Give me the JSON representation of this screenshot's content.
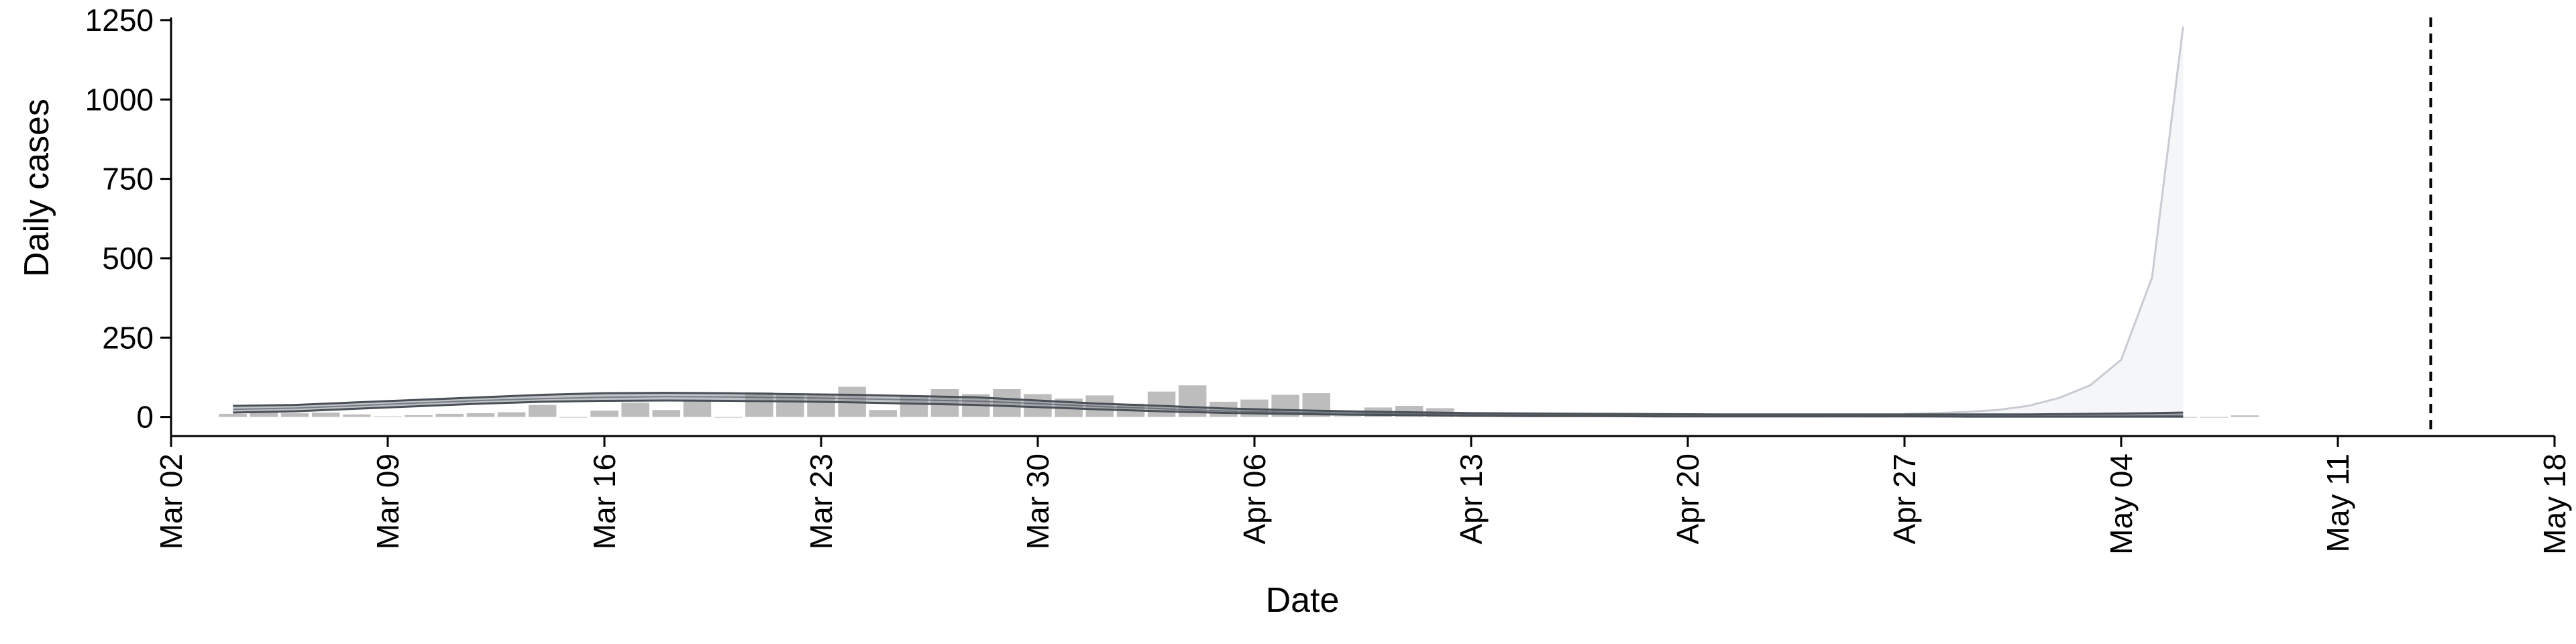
{
  "chart_data": {
    "type": "bar",
    "xlabel": "Date",
    "ylabel": "Daily cases",
    "xlim": [
      "2020-03-02",
      "2020-05-18"
    ],
    "ylim": [
      -60,
      1250
    ],
    "x_ticks": [
      "2020-03-02",
      "2020-03-09",
      "2020-03-16",
      "2020-03-23",
      "2020-03-30",
      "2020-04-06",
      "2020-04-13",
      "2020-04-20",
      "2020-04-27",
      "2020-05-04",
      "2020-05-11",
      "2020-05-18"
    ],
    "x_tick_labels": [
      "Mar 02",
      "Mar 09",
      "Mar 16",
      "Mar 23",
      "Mar 30",
      "Apr 06",
      "Apr 13",
      "Apr 20",
      "Apr 27",
      "May 04",
      "May 11",
      "May 18"
    ],
    "y_ticks": [
      0,
      250,
      500,
      750,
      1000,
      1250
    ],
    "y_tick_labels": [
      "0",
      "250",
      "500",
      "750",
      "1000",
      "1250"
    ],
    "grid": false,
    "legend": "none",
    "colors": {
      "bars": "#bdbdbd",
      "fit_line": "#4a5058",
      "fit_band": "#8a9099",
      "projection": "#c8ccd2",
      "reference_line": "#000000"
    },
    "daily_cases": {
      "dates": [
        "2020-03-04",
        "2020-03-05",
        "2020-03-06",
        "2020-03-07",
        "2020-03-08",
        "2020-03-09",
        "2020-03-10",
        "2020-03-11",
        "2020-03-12",
        "2020-03-13",
        "2020-03-14",
        "2020-03-15",
        "2020-03-16",
        "2020-03-17",
        "2020-03-18",
        "2020-03-19",
        "2020-03-20",
        "2020-03-21",
        "2020-03-22",
        "2020-03-23",
        "2020-03-24",
        "2020-03-25",
        "2020-03-26",
        "2020-03-27",
        "2020-03-28",
        "2020-03-29",
        "2020-03-30",
        "2020-03-31",
        "2020-04-01",
        "2020-04-02",
        "2020-04-03",
        "2020-04-04",
        "2020-04-05",
        "2020-04-06",
        "2020-04-07",
        "2020-04-08",
        "2020-04-09",
        "2020-04-10",
        "2020-04-11",
        "2020-04-12",
        "2020-04-13",
        "2020-04-14",
        "2020-04-15",
        "2020-04-16",
        "2020-04-17",
        "2020-04-18",
        "2020-04-19",
        "2020-04-20",
        "2020-04-21",
        "2020-04-22",
        "2020-04-23",
        "2020-04-24",
        "2020-04-25",
        "2020-04-26",
        "2020-04-27",
        "2020-04-28",
        "2020-04-29",
        "2020-04-30",
        "2020-05-01",
        "2020-05-02",
        "2020-05-03",
        "2020-05-04",
        "2020-05-05",
        "2020-05-06",
        "2020-05-07",
        "2020-05-08"
      ],
      "values": [
        10,
        18,
        12,
        14,
        8,
        2,
        6,
        10,
        12,
        15,
        38,
        0,
        20,
        45,
        22,
        55,
        0,
        78,
        75,
        72,
        95,
        22,
        68,
        88,
        72,
        88,
        72,
        58,
        68,
        42,
        80,
        100,
        48,
        55,
        70,
        75,
        2,
        30,
        35,
        28,
        12,
        10,
        8,
        6,
        4,
        3,
        5,
        2,
        4,
        3,
        2,
        1,
        2,
        1,
        3,
        2,
        2,
        1,
        2,
        1,
        1,
        2,
        1,
        0,
        0,
        5
      ]
    },
    "fit": {
      "dates": [
        "2020-03-04",
        "2020-03-06",
        "2020-03-08",
        "2020-03-10",
        "2020-03-12",
        "2020-03-14",
        "2020-03-16",
        "2020-03-18",
        "2020-03-20",
        "2020-03-22",
        "2020-03-24",
        "2020-03-26",
        "2020-03-28",
        "2020-03-30",
        "2020-04-01",
        "2020-04-03",
        "2020-04-05",
        "2020-04-07",
        "2020-04-09",
        "2020-04-11",
        "2020-04-13",
        "2020-04-15",
        "2020-04-17",
        "2020-04-19",
        "2020-04-21",
        "2020-04-23",
        "2020-04-25",
        "2020-04-27",
        "2020-04-29",
        "2020-05-01",
        "2020-05-03",
        "2020-05-05",
        "2020-05-06"
      ],
      "upper": [
        35,
        38,
        46,
        54,
        62,
        70,
        75,
        76,
        75,
        72,
        70,
        66,
        62,
        52,
        42,
        35,
        27,
        22,
        18,
        15,
        12,
        11,
        10,
        9,
        8,
        8,
        8,
        8,
        8,
        8,
        10,
        12,
        14
      ],
      "mid": [
        24,
        28,
        36,
        44,
        52,
        58,
        62,
        64,
        63,
        61,
        58,
        54,
        50,
        42,
        33,
        26,
        19,
        15,
        12,
        10,
        8,
        7,
        6,
        5,
        5,
        5,
        4,
        4,
        4,
        4,
        4,
        5,
        6
      ],
      "lower": [
        14,
        18,
        26,
        34,
        42,
        48,
        51,
        52,
        51,
        49,
        46,
        42,
        38,
        31,
        24,
        18,
        13,
        10,
        7,
        6,
        4,
        3,
        3,
        2,
        2,
        2,
        2,
        2,
        1,
        1,
        1,
        1,
        1
      ]
    },
    "projection": {
      "dates": [
        "2020-04-27",
        "2020-04-28",
        "2020-04-29",
        "2020-04-30",
        "2020-05-01",
        "2020-05-02",
        "2020-05-03",
        "2020-05-04",
        "2020-05-05",
        "2020-05-06"
      ],
      "upper": [
        10,
        12,
        16,
        22,
        35,
        60,
        100,
        180,
        440,
        1230
      ],
      "lower": [
        0,
        0,
        0,
        0,
        0,
        0,
        0,
        0,
        0,
        0
      ]
    },
    "reference_line_date": "2020-05-14"
  }
}
